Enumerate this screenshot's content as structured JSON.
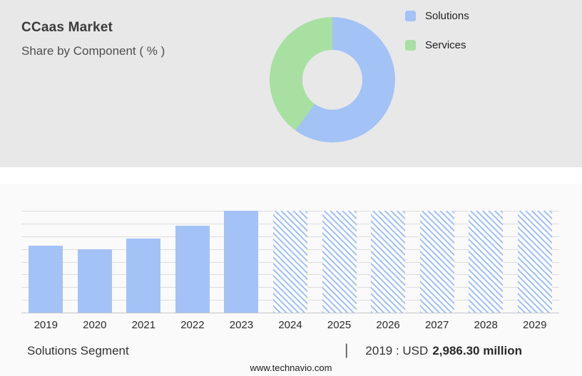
{
  "header": {
    "title": "CCaas Market",
    "subtitle": "Share by Component ( % )"
  },
  "legend": [
    {
      "label": "Solutions",
      "color": "#a3c2f6"
    },
    {
      "label": "Services",
      "color": "#a8e0a2"
    }
  ],
  "chart_data": [
    {
      "type": "pie",
      "title": "CCaas Market Share by Component ( % )",
      "labels": [
        "Solutions",
        "Services"
      ],
      "values": [
        60,
        40
      ],
      "colors": [
        "#a3c2f6",
        "#a8e0a2"
      ],
      "donut": true,
      "legend_position": "right"
    },
    {
      "type": "bar",
      "title": "Solutions Segment",
      "categories": [
        "2019",
        "2020",
        "2021",
        "2022",
        "2023",
        "2024",
        "2025",
        "2026",
        "2027",
        "2028",
        "2029"
      ],
      "values": [
        66,
        62,
        73,
        85,
        100,
        100,
        100,
        100,
        100,
        100,
        100
      ],
      "forecast_from": "2024",
      "bar_color": "#a3c2f6",
      "hatched_forecast": true,
      "xlabel": "",
      "ylabel": "",
      "ylim": [
        0,
        100
      ],
      "grid": true,
      "grid_intervals": 8
    }
  ],
  "caption": {
    "segment_label": "Solutions Segment",
    "separator": "|",
    "value_prefix": "2019 : USD",
    "value_bold": "2,986.30 million"
  },
  "footer": {
    "website": "www.technavio.com"
  }
}
